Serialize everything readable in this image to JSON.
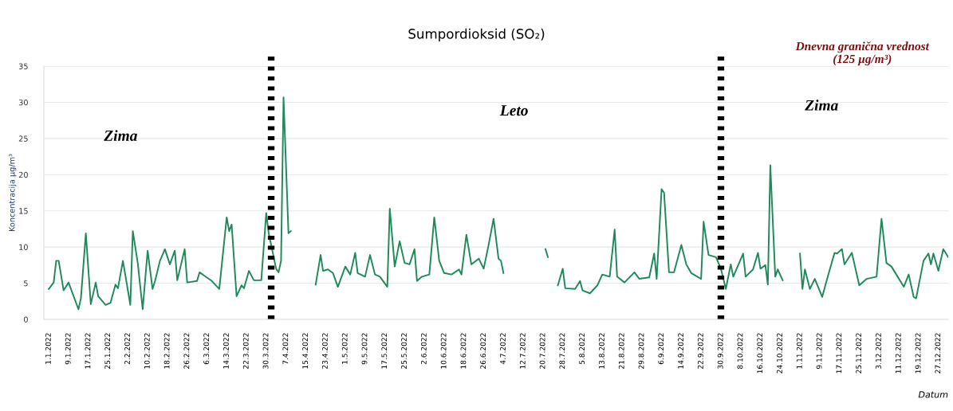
{
  "chart_data": {
    "type": "line",
    "title": "Sumpordioksid (SO₂)",
    "ylabel": "Koncentracija µg/m³",
    "xlabel": "Datum",
    "annotations": [
      "Zima",
      "Leto",
      "Zima",
      "Dnevna granična vrednost\n(125 µg/m³)"
    ],
    "x": [
      "2022-01-01",
      "2022-01-03",
      "2022-01-04",
      "2022-01-05",
      "2022-01-07",
      "2022-01-09",
      "2022-01-13",
      "2022-01-14",
      "2022-01-16",
      "2022-01-18",
      "2022-01-20",
      "2022-01-21",
      "2022-01-24",
      "2022-01-26",
      "2022-01-28",
      "2022-01-29",
      "2022-01-31",
      "2022-02-03",
      "2022-02-04",
      "2022-02-06",
      "2022-02-08",
      "2022-02-10",
      "2022-02-12",
      "2022-02-13",
      "2022-02-15",
      "2022-02-17",
      "2022-02-19",
      "2022-02-21",
      "2022-02-22",
      "2022-02-25",
      "2022-02-26",
      "2022-03-02",
      "2022-03-03",
      "2022-03-08",
      "2022-03-11",
      "2022-03-14",
      "2022-03-15",
      "2022-03-16",
      "2022-03-18",
      "2022-03-20",
      "2022-03-21",
      "2022-03-23",
      "2022-03-25",
      "2022-03-28",
      "2022-03-30",
      "2022-03-31",
      "2022-04-03",
      "2022-04-04",
      "2022-04-05",
      "2022-04-06",
      "2022-04-08",
      "2022-04-09",
      "2022-04-11",
      "2022-04-19",
      "2022-04-21",
      "2022-04-22",
      "2022-04-24",
      "2022-04-26",
      "2022-04-28",
      "2022-05-01",
      "2022-05-03",
      "2022-05-05",
      "2022-05-06",
      "2022-05-09",
      "2022-05-11",
      "2022-05-13",
      "2022-05-15",
      "2022-05-18",
      "2022-05-19",
      "2022-05-21",
      "2022-05-23",
      "2022-05-25",
      "2022-05-27",
      "2022-05-29",
      "2022-05-30",
      "2022-06-01",
      "2022-06-04",
      "2022-06-06",
      "2022-06-08",
      "2022-06-10",
      "2022-06-13",
      "2022-06-16",
      "2022-06-17",
      "2022-06-19",
      "2022-06-21",
      "2022-06-24",
      "2022-06-26",
      "2022-06-28",
      "2022-06-30",
      "2022-07-02",
      "2022-07-03",
      "2022-07-04",
      "2022-07-05",
      "2022-07-21",
      "2022-07-22",
      "2022-07-24",
      "2022-07-26",
      "2022-07-28",
      "2022-07-29",
      "2022-08-02",
      "2022-08-04",
      "2022-08-05",
      "2022-08-08",
      "2022-08-11",
      "2022-08-13",
      "2022-08-16",
      "2022-08-18",
      "2022-08-19",
      "2022-08-22",
      "2022-08-26",
      "2022-08-28",
      "2022-09-01",
      "2022-09-03",
      "2022-09-04",
      "2022-09-06",
      "2022-09-07",
      "2022-09-09",
      "2022-09-11",
      "2022-09-14",
      "2022-09-16",
      "2022-09-18",
      "2022-09-22",
      "2022-09-23",
      "2022-09-25",
      "2022-09-28",
      "2022-09-30",
      "2022-10-02",
      "2022-10-04",
      "2022-10-05",
      "2022-10-09",
      "2022-10-10",
      "2022-10-13",
      "2022-10-15",
      "2022-10-16",
      "2022-10-18",
      "2022-10-19",
      "2022-10-20",
      "2022-10-22",
      "2022-10-23",
      "2022-10-25",
      "2022-10-28",
      "2022-11-01",
      "2022-11-02",
      "2022-11-03",
      "2022-11-05",
      "2022-11-07",
      "2022-11-10",
      "2022-11-12",
      "2022-11-15",
      "2022-11-16",
      "2022-11-18",
      "2022-11-19",
      "2022-11-22",
      "2022-11-25",
      "2022-11-28",
      "2022-12-02",
      "2022-12-04",
      "2022-12-06",
      "2022-12-08",
      "2022-12-10",
      "2022-12-13",
      "2022-12-15",
      "2022-12-17",
      "2022-12-18",
      "2022-12-21",
      "2022-12-23",
      "2022-12-24",
      "2022-12-25",
      "2022-12-27",
      "2022-12-29",
      "2022-12-31"
    ],
    "series": [
      {
        "color": "#1e8a5a",
        "values": [
          4.2,
          5.1,
          8.1,
          8.1,
          4.0,
          5.1,
          1.4,
          2.9,
          11.9,
          2.1,
          5.1,
          3.2,
          2.0,
          2.3,
          4.8,
          4.3,
          8.1,
          2.0,
          12.2,
          7.8,
          1.4,
          9.5,
          4.2,
          5.3,
          8.1,
          9.7,
          7.6,
          9.5,
          5.4,
          9.7,
          5.1,
          5.3,
          6.5,
          5.3,
          4.2,
          14.1,
          12.2,
          13.1,
          3.2,
          4.7,
          4.3,
          6.7,
          5.4,
          5.4,
          14.7,
          11.9,
          7.0,
          6.5,
          8.1,
          30.7,
          11.9,
          12.2,
          null,
          4.8,
          8.9,
          6.7,
          6.9,
          6.4,
          4.5,
          7.3,
          6.2,
          9.2,
          6.4,
          5.9,
          8.9,
          6.2,
          5.9,
          4.5,
          15.3,
          7.3,
          10.8,
          7.8,
          7.6,
          9.7,
          5.3,
          5.9,
          6.2,
          14.1,
          8.1,
          6.4,
          6.2,
          6.9,
          6.2,
          11.7,
          7.6,
          8.4,
          7.0,
          10.3,
          13.9,
          8.4,
          8.1,
          6.4,
          null,
          9.7,
          8.6,
          null,
          4.7,
          7.0,
          4.3,
          4.2,
          5.3,
          4.0,
          3.6,
          4.7,
          6.2,
          5.9,
          12.4,
          5.9,
          5.1,
          6.5,
          5.6,
          5.8,
          9.1,
          5.6,
          18.0,
          17.5,
          6.5,
          6.5,
          10.3,
          7.6,
          6.4,
          5.6,
          13.5,
          8.9,
          8.6,
          7.0,
          4.2,
          7.6,
          5.9,
          9.1,
          5.9,
          6.9,
          9.2,
          7.0,
          7.5,
          4.8,
          21.3,
          5.9,
          6.9,
          5.4,
          null,
          9.1,
          4.2,
          6.9,
          4.2,
          5.6,
          3.1,
          5.6,
          9.2,
          9.1,
          9.7,
          7.6,
          9.2,
          4.7,
          5.6,
          5.9,
          13.9,
          7.8,
          7.3,
          6.2,
          4.5,
          6.2,
          3.1,
          2.9,
          8.1,
          9.1,
          7.6,
          9.1,
          6.7,
          9.7,
          8.6
        ]
      }
    ],
    "xlim": [
      "2021-12-30",
      "2022-12-31"
    ],
    "xticks": [
      {
        "value": "2022-01-01",
        "label": "1.1.2022"
      },
      {
        "value": "2022-01-09",
        "label": "9.1.2022"
      },
      {
        "value": "2022-01-17",
        "label": "17.1.2022"
      },
      {
        "value": "2022-01-25",
        "label": "25.1.2022"
      },
      {
        "value": "2022-02-02",
        "label": "2.2.2022"
      },
      {
        "value": "2022-02-10",
        "label": "10.2.2022"
      },
      {
        "value": "2022-02-18",
        "label": "18.2.2022"
      },
      {
        "value": "2022-02-26",
        "label": "26.2.2022"
      },
      {
        "value": "2022-03-06",
        "label": "6.3.2022"
      },
      {
        "value": "2022-03-14",
        "label": "14.3.2022"
      },
      {
        "value": "2022-03-22",
        "label": "22.3.2022"
      },
      {
        "value": "2022-03-30",
        "label": "30.3.2022"
      },
      {
        "value": "2022-04-07",
        "label": "7.4.2022"
      },
      {
        "value": "2022-04-15",
        "label": "15.4.2022"
      },
      {
        "value": "2022-04-23",
        "label": "23.4.2022"
      },
      {
        "value": "2022-05-01",
        "label": "1.5.2022"
      },
      {
        "value": "2022-05-09",
        "label": "9.5.2022"
      },
      {
        "value": "2022-05-17",
        "label": "17.5.2022"
      },
      {
        "value": "2022-05-25",
        "label": "25.5.2022"
      },
      {
        "value": "2022-06-02",
        "label": "2.6.2022"
      },
      {
        "value": "2022-06-10",
        "label": "10.6.2022"
      },
      {
        "value": "2022-06-18",
        "label": "18.6.2022"
      },
      {
        "value": "2022-06-26",
        "label": "26.6.2022"
      },
      {
        "value": "2022-07-04",
        "label": "4.7.2022"
      },
      {
        "value": "2022-07-12",
        "label": "12.7.2022"
      },
      {
        "value": "2022-07-20",
        "label": "20.7.2022"
      },
      {
        "value": "2022-07-28",
        "label": "28.7.2022"
      },
      {
        "value": "2022-08-05",
        "label": "5.8.2022"
      },
      {
        "value": "2022-08-13",
        "label": "13.8.2022"
      },
      {
        "value": "2022-08-21",
        "label": "21.8.2022"
      },
      {
        "value": "2022-08-29",
        "label": "29.8.2022"
      },
      {
        "value": "2022-09-06",
        "label": "6.9.2022"
      },
      {
        "value": "2022-09-14",
        "label": "14.9.2022"
      },
      {
        "value": "2022-09-22",
        "label": "22.9.2022"
      },
      {
        "value": "2022-09-30",
        "label": "30.9.2022"
      },
      {
        "value": "2022-10-08",
        "label": "8.10.2022"
      },
      {
        "value": "2022-10-16",
        "label": "16.10.2022"
      },
      {
        "value": "2022-10-24",
        "label": "24.10.2022"
      },
      {
        "value": "2022-11-01",
        "label": "1.11.2022"
      },
      {
        "value": "2022-11-09",
        "label": "9.11.2022"
      },
      {
        "value": "2022-11-17",
        "label": "17.11.2022"
      },
      {
        "value": "2022-11-25",
        "label": "25.11.2022"
      },
      {
        "value": "2022-12-03",
        "label": "3.12.2022"
      },
      {
        "value": "2022-12-11",
        "label": "11.12.2022"
      },
      {
        "value": "2022-12-19",
        "label": "19.12.2022"
      },
      {
        "value": "2022-12-27",
        "label": "27.12.2022"
      }
    ],
    "ylim": [
      0,
      35
    ],
    "yticks": [
      0,
      5,
      10,
      15,
      20,
      25,
      30,
      35
    ],
    "ref_lines": [
      {
        "axis": "x",
        "value": "2022-04-01",
        "color": "#000000",
        "line_style": "dotted"
      },
      {
        "axis": "x",
        "value": "2022-09-30",
        "color": "#000000",
        "line_style": "dotted"
      }
    ],
    "grid": "y",
    "legend": false,
    "marker": "none",
    "line_style": "solid"
  }
}
